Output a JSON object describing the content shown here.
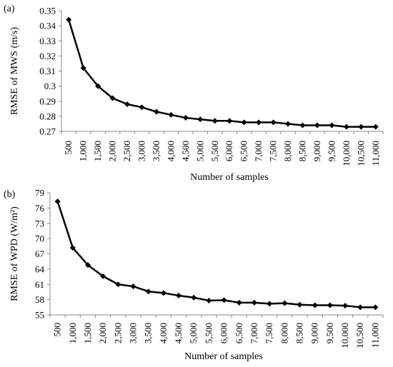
{
  "chart_data": [
    {
      "type": "line",
      "panel_label": "(a)",
      "xlabel": "Number of samples",
      "ylabel": "RMSE of MWS (m/s)",
      "categories": [
        "500",
        "1,000",
        "1,500",
        "2,000",
        "2,500",
        "3,000",
        "3,500",
        "4,000",
        "4,500",
        "5,000",
        "5,500",
        "6,000",
        "6,500",
        "7,000",
        "7,500",
        "8,000",
        "8,500",
        "9,000",
        "9,500",
        "10,000",
        "10,500",
        "11,000"
      ],
      "values": [
        0.344,
        0.312,
        0.3,
        0.292,
        0.288,
        0.286,
        0.283,
        0.281,
        0.279,
        0.278,
        0.277,
        0.277,
        0.276,
        0.276,
        0.276,
        0.275,
        0.274,
        0.274,
        0.274,
        0.273,
        0.273,
        0.273
      ],
      "ylim": [
        0.27,
        0.35
      ],
      "yticks": [
        "0.27",
        "0.28",
        "0.29",
        "0.3",
        "0.31",
        "0.32",
        "0.33",
        "0.34",
        "0.35"
      ],
      "grid": false,
      "marker": "diamond",
      "color": "#000000"
    },
    {
      "type": "line",
      "panel_label": "(b)",
      "xlabel": "Number of samples",
      "ylabel": "RMSE of WPD (W/m²)",
      "categories": [
        "500",
        "1,000",
        "1,500",
        "2,000",
        "2,500",
        "3,000",
        "3,500",
        "4,000",
        "4,500",
        "5,000",
        "5,500",
        "6,000",
        "6,500",
        "7,000",
        "7,500",
        "8,000",
        "8,500",
        "9,000",
        "9,500",
        "10,000",
        "10,500",
        "11,000"
      ],
      "values": [
        77.3,
        68.2,
        64.8,
        62.6,
        61.0,
        60.6,
        59.6,
        59.3,
        58.8,
        58.4,
        57.8,
        57.9,
        57.4,
        57.4,
        57.2,
        57.3,
        57.0,
        56.9,
        56.9,
        56.8,
        56.5,
        56.5
      ],
      "ylim": [
        55,
        79
      ],
      "yticks": [
        "55",
        "58",
        "61",
        "64",
        "67",
        "70",
        "73",
        "76",
        "79"
      ],
      "grid": false,
      "marker": "diamond",
      "color": "#000000"
    }
  ]
}
